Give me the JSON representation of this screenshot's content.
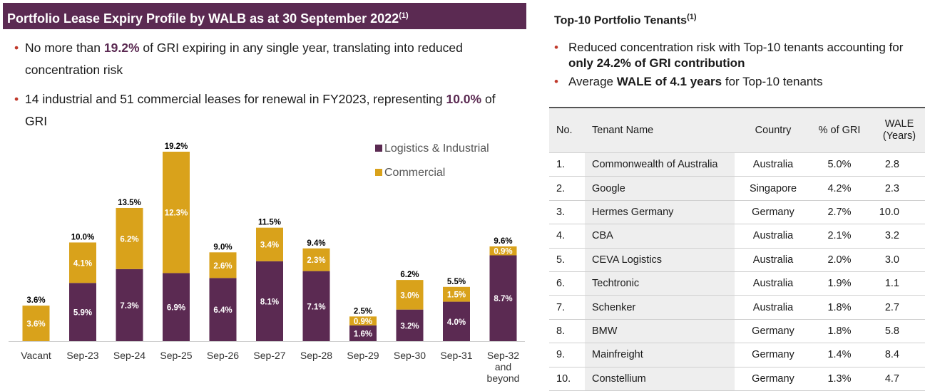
{
  "left": {
    "header_text": "Portfolio Lease Expiry Profile by WALB as at 30 September 2022",
    "header_sup": "(1)",
    "bullets": [
      {
        "pre": "No more than ",
        "hl": "19.2%",
        "post": " of GRI expiring in any single year, translating into reduced concentration risk"
      },
      {
        "pre": "14 industrial and 51 commercial leases for renewal in FY2023, representing ",
        "hl": "10.0%",
        "post": " of GRI"
      }
    ],
    "bullet_glyph": "•"
  },
  "chart_data": {
    "type": "bar",
    "stacked": true,
    "categories": [
      "Vacant",
      "Sep-23",
      "Sep-24",
      "Sep-25",
      "Sep-26",
      "Sep-27",
      "Sep-28",
      "Sep-29",
      "Sep-30",
      "Sep-31",
      "Sep-32 and beyond"
    ],
    "series": [
      {
        "name": "Logistics & Industrial",
        "color": "#5b2a52",
        "values": [
          0,
          5.9,
          7.3,
          6.9,
          6.4,
          8.1,
          7.1,
          1.6,
          3.2,
          4.0,
          8.7
        ],
        "labels": [
          "",
          "5.9%",
          "7.3%",
          "6.9%",
          "6.4%",
          "8.1%",
          "7.1%",
          "1.6%",
          "3.2%",
          "4.0%",
          "8.7%"
        ]
      },
      {
        "name": "Commercial",
        "color": "#d9a21b",
        "values": [
          3.6,
          4.1,
          6.2,
          12.3,
          2.6,
          3.4,
          2.3,
          0.9,
          3.0,
          1.5,
          0.9
        ],
        "labels": [
          "3.6%",
          "4.1%",
          "6.2%",
          "12.3%",
          "2.6%",
          "3.4%",
          "2.3%",
          "0.9%",
          "3.0%",
          "1.5%",
          "0.9%"
        ]
      }
    ],
    "totals": [
      "3.6%",
      "10.0%",
      "13.5%",
      "19.2%",
      "9.0%",
      "11.5%",
      "9.4%",
      "2.5%",
      "6.2%",
      "5.5%",
      "9.6%"
    ],
    "legend": [
      "Logistics & Industrial",
      "Commercial"
    ],
    "legend_position": "top-right",
    "ylim": [
      0,
      19.2
    ],
    "xlabel": "",
    "ylabel": "",
    "grid": false
  },
  "right": {
    "title": "Top-10 Portfolio Tenants",
    "title_sup": "(1)",
    "bullets": [
      {
        "pre": "Reduced concentration risk with Top-10 tenants accounting for ",
        "bold": "only 24.2% of GRI contribution",
        "post": ""
      },
      {
        "pre": "Average ",
        "bold": "WALE of 4.1 years",
        "post": " for Top-10 tenants"
      }
    ],
    "bullet_glyph": "•",
    "table": {
      "headers": [
        "No.",
        "Tenant Name",
        "Country",
        "% of GRI",
        "WALE (Years)"
      ],
      "rows": [
        [
          "1.",
          "Commonwealth of Australia",
          "Australia",
          "5.0%",
          "2.8"
        ],
        [
          "2.",
          "Google",
          "Singapore",
          "4.2%",
          "2.3"
        ],
        [
          "3.",
          "Hermes Germany",
          "Germany",
          "2.7%",
          "10.0"
        ],
        [
          "4.",
          "CBA",
          "Australia",
          "2.1%",
          "3.2"
        ],
        [
          "5.",
          "CEVA Logistics",
          "Australia",
          "2.0%",
          "3.0"
        ],
        [
          "6.",
          "Techtronic",
          "Australia",
          "1.9%",
          "1.1"
        ],
        [
          "7.",
          "Schenker",
          "Australia",
          "1.8%",
          "2.7"
        ],
        [
          "8.",
          "BMW",
          "Germany",
          "1.8%",
          "5.8"
        ],
        [
          "9.",
          "Mainfreight",
          "Germany",
          "1.4%",
          "8.4"
        ],
        [
          "10.",
          "Constellium",
          "Germany",
          "1.3%",
          "4.7"
        ]
      ]
    }
  }
}
